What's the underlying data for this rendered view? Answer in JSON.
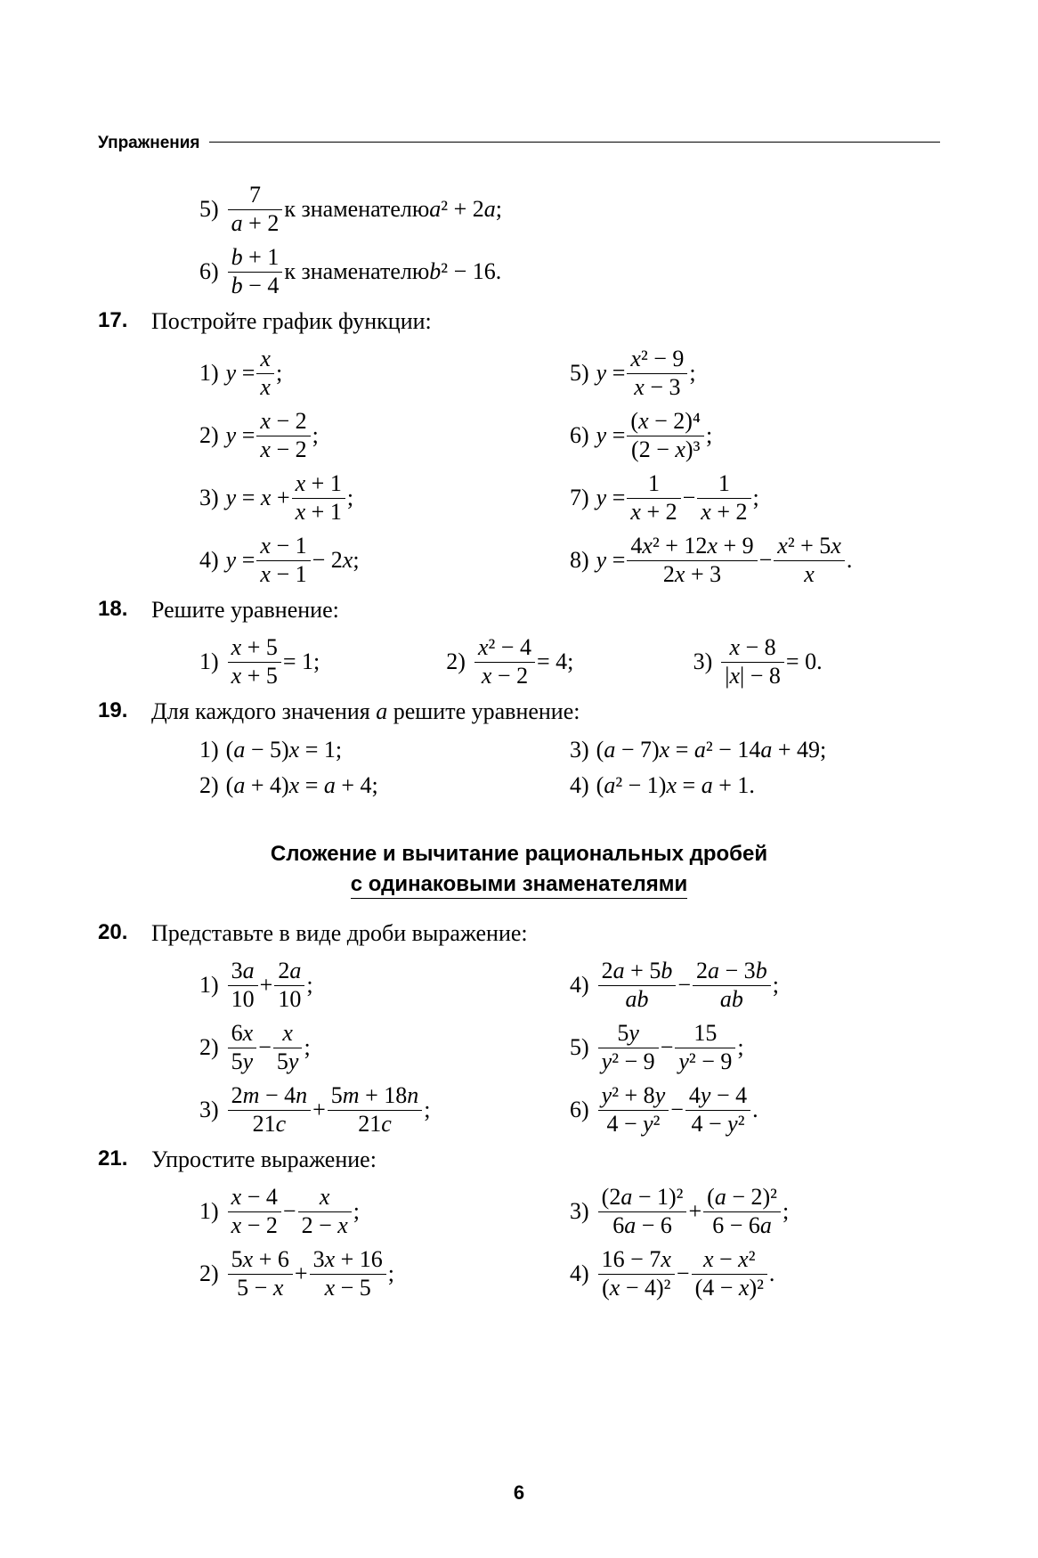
{
  "header": "Упражнения",
  "page_number": "6",
  "section_title_line1": "Сложение и вычитание рациональных дробей",
  "section_title_line2": "с одинаковыми знаменателями",
  "fonts": {
    "serif": "Georgia",
    "sans": "Arial"
  },
  "colors": {
    "text": "#000000",
    "background": "#ffffff"
  },
  "font_sizes": {
    "body": 26,
    "header_label": 19,
    "problem_number": 24,
    "section_title": 24,
    "page_number": 22
  },
  "continuation_items": [
    {
      "label": "5)",
      "type": "frac_plus_text",
      "frac_num": "7",
      "frac_den_parts": [
        "a",
        " + 2"
      ],
      "tail_prefix": " к знаменателю ",
      "tail_expr_parts": [
        "a",
        "² + 2",
        "a"
      ],
      "tail_suffix": ";"
    },
    {
      "label": "6)",
      "type": "frac_plus_text",
      "frac_num_parts": [
        "b",
        " + 1"
      ],
      "frac_den_parts": [
        "b",
        " − 4"
      ],
      "tail_prefix": " к знаменателю ",
      "tail_expr_parts": [
        "b",
        "² − 16"
      ],
      "tail_suffix": "."
    }
  ],
  "p17": {
    "number": "17.",
    "prompt": "Постройте график функции:",
    "items": [
      {
        "label": "1)",
        "lhs": "y = ",
        "frac": {
          "num_it": "x",
          "den_it": "x"
        },
        "after": ";"
      },
      {
        "label": "5)",
        "lhs": "y = ",
        "frac": {
          "num_parts": [
            "x",
            "² − 9"
          ],
          "den_parts": [
            "x",
            " − 3"
          ]
        },
        "after": ";"
      },
      {
        "label": "2)",
        "lhs": "y = ",
        "frac": {
          "num_parts": [
            "x",
            " − 2"
          ],
          "den_parts": [
            "x",
            " − 2"
          ]
        },
        "after": ";"
      },
      {
        "label": "6)",
        "lhs": "y = ",
        "frac": {
          "num_parts": [
            "(",
            "x",
            " − 2)⁴"
          ],
          "den_parts": [
            "(2 − ",
            "x",
            ")³"
          ]
        },
        "after": ";"
      },
      {
        "label": "3)",
        "lhs_parts": [
          "y",
          " = ",
          "x",
          " + "
        ],
        "frac": {
          "num_parts": [
            "x",
            " + 1"
          ],
          "den_parts": [
            "x",
            " + 1"
          ]
        },
        "after": ";"
      },
      {
        "label": "7)",
        "lhs": "y = ",
        "frac": {
          "num": "1",
          "den_parts": [
            "x",
            " + 2"
          ]
        },
        "mid": " − ",
        "frac2": {
          "num": "1",
          "den_parts": [
            "x",
            " + 2"
          ]
        },
        "after": ";"
      },
      {
        "label": "4)",
        "lhs": "y = ",
        "frac": {
          "num_parts": [
            "x",
            " − 1"
          ],
          "den_parts": [
            "x",
            " − 1"
          ]
        },
        "after_parts": [
          " − 2",
          "x",
          ";"
        ]
      },
      {
        "label": "8)",
        "lhs": "y = ",
        "frac": {
          "num_parts": [
            "4",
            "x",
            "² + 12",
            "x",
            " + 9"
          ],
          "den_parts": [
            "2",
            "x",
            " + 3"
          ]
        },
        "mid": " − ",
        "frac2": {
          "num_parts": [
            "x",
            "² + 5",
            "x"
          ],
          "den_it": "x"
        },
        "after": "."
      }
    ]
  },
  "p18": {
    "number": "18.",
    "prompt": "Решите уравнение:",
    "items": [
      {
        "label": "1)",
        "frac": {
          "num_parts": [
            "x",
            " + 5"
          ],
          "den_parts": [
            "x",
            " + 5"
          ]
        },
        "after": " = 1;"
      },
      {
        "label": "2)",
        "frac": {
          "num_parts": [
            "x",
            "² − 4"
          ],
          "den_parts": [
            "x",
            " − 2"
          ]
        },
        "after": " = 4;"
      },
      {
        "label": "3)",
        "frac": {
          "num_parts": [
            "x",
            " − 8"
          ],
          "den_parts": [
            "|",
            "x",
            "| − 8"
          ]
        },
        "after": " = 0."
      }
    ]
  },
  "p19": {
    "number": "19.",
    "prompt_parts": [
      "Для каждого значения ",
      "a",
      " решите уравнение:"
    ],
    "items": [
      {
        "label": "1)",
        "text_parts": [
          "(",
          "a",
          " − 5)",
          "x",
          " = 1;"
        ]
      },
      {
        "label": "3)",
        "text_parts": [
          "(",
          "a",
          " − 7)",
          "x",
          " = ",
          "a",
          "² − 14",
          "a",
          " + 49;"
        ]
      },
      {
        "label": "2)",
        "text_parts": [
          "(",
          "a",
          " + 4)",
          "x",
          " = ",
          "a",
          " + 4;"
        ]
      },
      {
        "label": "4)",
        "text_parts": [
          "(",
          "a",
          "² − 1)",
          "x",
          " = ",
          "a",
          " + 1."
        ]
      }
    ]
  },
  "p20": {
    "number": "20.",
    "prompt": "Представьте в виде дроби выражение:",
    "items": [
      {
        "label": "1)",
        "frac": {
          "num_parts": [
            "3",
            "a"
          ],
          "den": "10"
        },
        "mid": " + ",
        "frac2": {
          "num_parts": [
            "2",
            "a"
          ],
          "den": "10"
        },
        "after": ";"
      },
      {
        "label": "4)",
        "frac": {
          "num_parts": [
            "2",
            "a",
            " + 5",
            "b"
          ],
          "den_it": "ab"
        },
        "mid": " − ",
        "frac2": {
          "num_parts": [
            "2",
            "a",
            " − 3",
            "b"
          ],
          "den_it": "ab"
        },
        "after": ";"
      },
      {
        "label": "2)",
        "frac": {
          "num_parts": [
            "6",
            "x"
          ],
          "den_parts": [
            "5",
            "y"
          ]
        },
        "mid": " − ",
        "frac2": {
          "num_it": "x",
          "den_parts": [
            "5",
            "y"
          ]
        },
        "after": ";"
      },
      {
        "label": "5)",
        "frac": {
          "num_parts": [
            "5",
            "y"
          ],
          "den_parts": [
            "y",
            "² − 9"
          ]
        },
        "mid": " − ",
        "frac2": {
          "num": "15",
          "den_parts": [
            "y",
            "² − 9"
          ]
        },
        "after": ";"
      },
      {
        "label": "3)",
        "frac": {
          "num_parts": [
            "2",
            "m",
            " − 4",
            "n"
          ],
          "den_parts": [
            "21",
            "c"
          ]
        },
        "mid": " + ",
        "frac2": {
          "num_parts": [
            "5",
            "m",
            " + 18",
            "n"
          ],
          "den_parts": [
            "21",
            "c"
          ]
        },
        "after": ";"
      },
      {
        "label": "6)",
        "frac": {
          "num_parts": [
            "y",
            "² + 8",
            "y"
          ],
          "den_parts": [
            "4 − ",
            "y",
            "²"
          ]
        },
        "mid": " − ",
        "frac2": {
          "num_parts": [
            "4",
            "y",
            " − 4"
          ],
          "den_parts": [
            "4 − ",
            "y",
            "²"
          ]
        },
        "after": "."
      }
    ]
  },
  "p21": {
    "number": "21.",
    "prompt": "Упростите выражение:",
    "items": [
      {
        "label": "1)",
        "frac": {
          "num_parts": [
            "x",
            " − 4"
          ],
          "den_parts": [
            "x",
            " − 2"
          ]
        },
        "mid": " − ",
        "frac2": {
          "num_it": "x",
          "den_parts": [
            "2 − ",
            "x"
          ]
        },
        "after": ";"
      },
      {
        "label": "3)",
        "frac": {
          "num_parts": [
            "(2",
            "a",
            " − 1)²"
          ],
          "den_parts": [
            "6",
            "a",
            " − 6"
          ]
        },
        "mid": " + ",
        "frac2": {
          "num_parts": [
            "(",
            "a",
            " − 2)²"
          ],
          "den_parts": [
            "6 − 6",
            "a"
          ]
        },
        "after": ";"
      },
      {
        "label": "2)",
        "frac": {
          "num_parts": [
            "5",
            "x",
            " + 6"
          ],
          "den_parts": [
            "5 − ",
            "x"
          ]
        },
        "mid": " + ",
        "frac2": {
          "num_parts": [
            "3",
            "x",
            " + 16"
          ],
          "den_parts": [
            "x",
            " − 5"
          ]
        },
        "after": ";"
      },
      {
        "label": "4)",
        "frac": {
          "num_parts": [
            "16 − 7",
            "x"
          ],
          "den_parts": [
            "(",
            "x",
            " − 4)²"
          ]
        },
        "mid": " − ",
        "frac2": {
          "num_parts": [
            "x",
            " − ",
            "x",
            "²"
          ],
          "den_parts": [
            "(4 − ",
            "x",
            ")²"
          ]
        },
        "after": "."
      }
    ]
  },
  "italic_vars": [
    "a",
    "b",
    "c",
    "m",
    "n",
    "x",
    "y",
    "ab"
  ]
}
